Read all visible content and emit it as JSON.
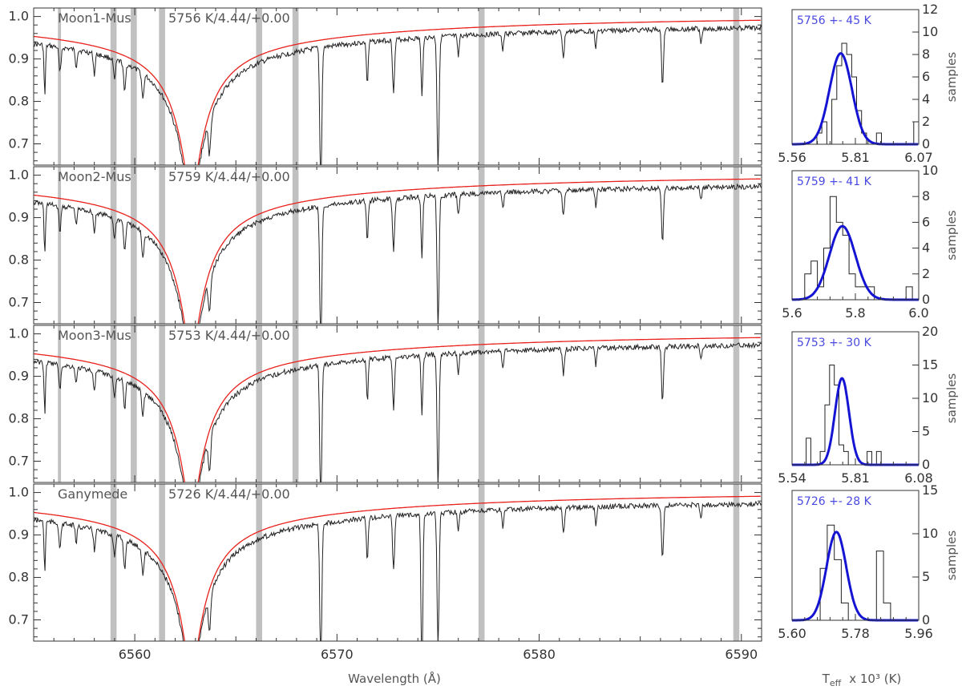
{
  "colors": {
    "spectrum": "#222222",
    "model": "#e8211c",
    "mask": "#c0c0c0",
    "gauss": "#1414d2",
    "histogram": "#222222",
    "label": "#555555",
    "hist_label": "#4a4ae0"
  },
  "chart_data": [
    {
      "type": "line",
      "panel": "Moon1-Mus",
      "label_name": "Moon1-Mus",
      "label_params": "5756 K/4.44/+0.00",
      "xlabel": "",
      "xlim": [
        6555.0,
        6591.0
      ],
      "ylim": [
        0.65,
        1.02
      ],
      "yticks": [
        "1.0",
        "0.9",
        "0.8",
        "0.7"
      ],
      "mask_windows": [
        [
          6556.2,
          6556.35
        ],
        [
          6558.8,
          6559.1
        ],
        [
          6559.8,
          6560.1
        ],
        [
          6561.2,
          6561.5
        ],
        [
          6566.0,
          6566.3
        ],
        [
          6567.8,
          6568.1
        ],
        [
          6577.0,
          6577.3
        ],
        [
          6589.6,
          6589.9
        ]
      ],
      "lines": [
        {
          "w": 6555.55,
          "d": 0.12,
          "s": 0.05
        },
        {
          "w": 6556.3,
          "d": 0.06,
          "s": 0.07
        },
        {
          "w": 6557.1,
          "d": 0.04,
          "s": 0.06
        },
        {
          "w": 6558.0,
          "d": 0.05,
          "s": 0.06
        },
        {
          "w": 6559.0,
          "d": 0.05,
          "s": 0.07
        },
        {
          "w": 6559.5,
          "d": 0.07,
          "s": 0.07
        },
        {
          "w": 6560.4,
          "d": 0.06,
          "s": 0.07
        },
        {
          "w": 6563.7,
          "d": 0.08,
          "s": 0.08
        },
        {
          "w": 6569.2,
          "d": 0.33,
          "s": 0.07
        },
        {
          "w": 6571.5,
          "d": 0.1,
          "s": 0.06
        },
        {
          "w": 6572.8,
          "d": 0.12,
          "s": 0.07
        },
        {
          "w": 6574.2,
          "d": 0.14,
          "s": 0.06
        },
        {
          "w": 6575.0,
          "d": 0.31,
          "s": 0.07
        },
        {
          "w": 6576.0,
          "d": 0.05,
          "s": 0.06
        },
        {
          "w": 6578.2,
          "d": 0.04,
          "s": 0.06
        },
        {
          "w": 6581.2,
          "d": 0.06,
          "s": 0.07
        },
        {
          "w": 6582.8,
          "d": 0.04,
          "s": 0.06
        },
        {
          "w": 6586.1,
          "d": 0.13,
          "s": 0.07
        },
        {
          "w": 6588.0,
          "d": 0.03,
          "s": 0.06
        }
      ],
      "gauss_amp": 0.0,
      "series": [
        {
          "name": "",
          "kind": "observed",
          "values": []
        },
        {
          "name": "",
          "kind": "model",
          "values": []
        }
      ]
    },
    {
      "type": "line",
      "panel": "Moon2-Mus",
      "label_name": "Moon2-Mus",
      "label_params": "5759 K/4.44/+0.00",
      "xlabel": "",
      "xlim": [
        6555.0,
        6591.0
      ],
      "ylim": [
        0.65,
        1.02
      ],
      "yticks": [
        "1.0",
        "0.9",
        "0.8",
        "0.7"
      ],
      "mask_windows": [
        [
          6556.2,
          6556.35
        ],
        [
          6558.8,
          6559.1
        ],
        [
          6559.8,
          6560.1
        ],
        [
          6561.2,
          6561.5
        ],
        [
          6566.0,
          6566.3
        ],
        [
          6567.8,
          6568.1
        ],
        [
          6577.0,
          6577.3
        ],
        [
          6589.6,
          6589.9
        ]
      ],
      "lines": [
        {
          "w": 6555.55,
          "d": 0.12,
          "s": 0.05
        },
        {
          "w": 6556.3,
          "d": 0.06,
          "s": 0.07
        },
        {
          "w": 6557.1,
          "d": 0.04,
          "s": 0.06
        },
        {
          "w": 6558.0,
          "d": 0.05,
          "s": 0.06
        },
        {
          "w": 6559.0,
          "d": 0.05,
          "s": 0.07
        },
        {
          "w": 6559.5,
          "d": 0.07,
          "s": 0.07
        },
        {
          "w": 6560.4,
          "d": 0.06,
          "s": 0.07
        },
        {
          "w": 6563.7,
          "d": 0.08,
          "s": 0.08
        },
        {
          "w": 6569.2,
          "d": 0.33,
          "s": 0.07
        },
        {
          "w": 6571.5,
          "d": 0.1,
          "s": 0.06
        },
        {
          "w": 6572.8,
          "d": 0.12,
          "s": 0.07
        },
        {
          "w": 6574.2,
          "d": 0.14,
          "s": 0.06
        },
        {
          "w": 6575.0,
          "d": 0.31,
          "s": 0.07
        },
        {
          "w": 6576.0,
          "d": 0.05,
          "s": 0.06
        },
        {
          "w": 6578.2,
          "d": 0.04,
          "s": 0.06
        },
        {
          "w": 6581.2,
          "d": 0.06,
          "s": 0.07
        },
        {
          "w": 6582.8,
          "d": 0.04,
          "s": 0.06
        },
        {
          "w": 6586.1,
          "d": 0.13,
          "s": 0.07
        },
        {
          "w": 6588.0,
          "d": 0.03,
          "s": 0.06
        }
      ],
      "series": [
        {
          "name": "",
          "kind": "observed",
          "values": []
        },
        {
          "name": "",
          "kind": "model",
          "values": []
        }
      ]
    },
    {
      "type": "line",
      "panel": "Moon3-Mus",
      "label_name": "Moon3-Mus",
      "label_params": "5753 K/4.44/+0.00",
      "xlabel": "",
      "xlim": [
        6555.0,
        6591.0
      ],
      "ylim": [
        0.65,
        1.02
      ],
      "yticks": [
        "1.0",
        "0.9",
        "0.8",
        "0.7"
      ],
      "mask_windows": [
        [
          6556.2,
          6556.35
        ],
        [
          6558.8,
          6559.1
        ],
        [
          6559.8,
          6560.1
        ],
        [
          6561.2,
          6561.5
        ],
        [
          6566.0,
          6566.3
        ],
        [
          6567.8,
          6568.1
        ],
        [
          6577.0,
          6577.3
        ],
        [
          6589.6,
          6589.9
        ]
      ],
      "lines": [
        {
          "w": 6555.55,
          "d": 0.12,
          "s": 0.05
        },
        {
          "w": 6556.3,
          "d": 0.06,
          "s": 0.07
        },
        {
          "w": 6557.1,
          "d": 0.04,
          "s": 0.06
        },
        {
          "w": 6558.0,
          "d": 0.05,
          "s": 0.06
        },
        {
          "w": 6559.0,
          "d": 0.05,
          "s": 0.07
        },
        {
          "w": 6559.5,
          "d": 0.07,
          "s": 0.07
        },
        {
          "w": 6560.4,
          "d": 0.06,
          "s": 0.07
        },
        {
          "w": 6563.7,
          "d": 0.08,
          "s": 0.08
        },
        {
          "w": 6569.2,
          "d": 0.33,
          "s": 0.07
        },
        {
          "w": 6571.5,
          "d": 0.1,
          "s": 0.06
        },
        {
          "w": 6572.8,
          "d": 0.12,
          "s": 0.07
        },
        {
          "w": 6574.2,
          "d": 0.14,
          "s": 0.06
        },
        {
          "w": 6575.0,
          "d": 0.31,
          "s": 0.07
        },
        {
          "w": 6576.0,
          "d": 0.05,
          "s": 0.06
        },
        {
          "w": 6578.2,
          "d": 0.04,
          "s": 0.06
        },
        {
          "w": 6581.2,
          "d": 0.06,
          "s": 0.07
        },
        {
          "w": 6582.8,
          "d": 0.04,
          "s": 0.06
        },
        {
          "w": 6586.1,
          "d": 0.13,
          "s": 0.07
        },
        {
          "w": 6588.0,
          "d": 0.03,
          "s": 0.06
        }
      ],
      "series": [
        {
          "name": "",
          "kind": "observed",
          "values": []
        },
        {
          "name": "",
          "kind": "model",
          "values": []
        }
      ]
    },
    {
      "type": "line",
      "panel": "Ganymede",
      "label_name": "Ganymede",
      "label_params": "5726 K/4.44/+0.00",
      "xlabel": "Wavelength (Å)",
      "xlim": [
        6555.0,
        6591.0
      ],
      "ylim": [
        0.65,
        1.02
      ],
      "yticks": [
        "1.0",
        "0.9",
        "0.8",
        "0.7"
      ],
      "xticks": [
        6560,
        6570,
        6580,
        6590
      ],
      "mask_windows": [
        [
          6558.8,
          6559.1
        ],
        [
          6561.2,
          6561.5
        ],
        [
          6566.0,
          6566.3
        ],
        [
          6577.0,
          6577.3
        ],
        [
          6589.6,
          6589.9
        ]
      ],
      "lines": [
        {
          "w": 6555.55,
          "d": 0.12,
          "s": 0.05
        },
        {
          "w": 6556.3,
          "d": 0.06,
          "s": 0.07
        },
        {
          "w": 6557.1,
          "d": 0.04,
          "s": 0.06
        },
        {
          "w": 6558.0,
          "d": 0.05,
          "s": 0.06
        },
        {
          "w": 6559.0,
          "d": 0.05,
          "s": 0.07
        },
        {
          "w": 6559.5,
          "d": 0.07,
          "s": 0.07
        },
        {
          "w": 6560.4,
          "d": 0.06,
          "s": 0.07
        },
        {
          "w": 6563.7,
          "d": 0.08,
          "s": 0.08
        },
        {
          "w": 6569.2,
          "d": 0.33,
          "s": 0.07
        },
        {
          "w": 6571.5,
          "d": 0.1,
          "s": 0.06
        },
        {
          "w": 6572.8,
          "d": 0.12,
          "s": 0.07
        },
        {
          "w": 6574.2,
          "d": 0.4,
          "s": 0.06
        },
        {
          "w": 6575.0,
          "d": 0.31,
          "s": 0.07
        },
        {
          "w": 6576.0,
          "d": 0.05,
          "s": 0.06
        },
        {
          "w": 6578.2,
          "d": 0.04,
          "s": 0.06
        },
        {
          "w": 6581.2,
          "d": 0.06,
          "s": 0.07
        },
        {
          "w": 6582.8,
          "d": 0.04,
          "s": 0.06
        },
        {
          "w": 6586.1,
          "d": 0.13,
          "s": 0.07
        },
        {
          "w": 6588.0,
          "d": 0.03,
          "s": 0.06
        }
      ],
      "series": [
        {
          "name": "",
          "kind": "observed",
          "values": []
        },
        {
          "name": "",
          "kind": "model",
          "values": []
        }
      ]
    },
    {
      "type": "bar",
      "panel": "hist-1",
      "label": "5756 +- 45 K",
      "ylabel": "samples",
      "xlim": [
        5.56,
        6.07
      ],
      "ylim": [
        0,
        12
      ],
      "xtick_labels": [
        "5.56",
        "5.81",
        "6.07"
      ],
      "yticks": [
        0,
        2,
        4,
        6,
        8,
        10,
        12
      ],
      "bin_edges": [
        5.66,
        5.68,
        5.7,
        5.72,
        5.74,
        5.76,
        5.78,
        5.8,
        5.82,
        5.84,
        5.86,
        5.88,
        5.9,
        5.92,
        5.94,
        5.96,
        5.98
      ],
      "counts": [
        1,
        2,
        0,
        4,
        7,
        9,
        8,
        6,
        3,
        1,
        0,
        0,
        1,
        0,
        0,
        0
      ],
      "extra_bins": [
        [
          6.05,
          6.07,
          2
        ]
      ],
      "gauss": {
        "mu": 5.756,
        "sigma": 0.045,
        "amp": 8.1
      }
    },
    {
      "type": "bar",
      "panel": "hist-2",
      "label": "5759 +- 41 K",
      "ylabel": "samples",
      "xlim": [
        5.6,
        6.0
      ],
      "ylim": [
        0,
        10
      ],
      "xtick_labels": [
        "5.6",
        "5.8",
        "6.0"
      ],
      "yticks": [
        0,
        2,
        4,
        6,
        8,
        10
      ],
      "bin_edges": [
        5.64,
        5.66,
        5.68,
        5.7,
        5.72,
        5.74,
        5.76,
        5.78,
        5.8,
        5.82,
        5.84,
        5.86,
        5.88,
        5.9
      ],
      "counts": [
        2,
        3,
        1,
        4,
        8,
        6,
        5,
        2,
        1,
        1,
        1,
        0,
        0
      ],
      "extra_bins": [
        [
          5.96,
          5.98,
          1
        ]
      ],
      "gauss": {
        "mu": 5.759,
        "sigma": 0.041,
        "amp": 5.7
      }
    },
    {
      "type": "bar",
      "panel": "hist-3",
      "label": "5753 +- 30 K",
      "ylabel": "samples",
      "xlim": [
        5.54,
        6.08
      ],
      "ylim": [
        0,
        20
      ],
      "xtick_labels": [
        "5.54",
        "5.81",
        "6.08"
      ],
      "yticks": [
        0,
        5,
        10,
        15,
        20
      ],
      "bin_edges": [
        5.6,
        5.62,
        5.64,
        5.66,
        5.68,
        5.7,
        5.72,
        5.74,
        5.76,
        5.78,
        5.8
      ],
      "counts": [
        4,
        0,
        0,
        2,
        9,
        15,
        12,
        3,
        2,
        0
      ],
      "extra_bins": [
        [
          5.86,
          5.88,
          2
        ],
        [
          5.88,
          5.9,
          0
        ],
        [
          5.9,
          5.92,
          2
        ]
      ],
      "gauss": {
        "mu": 5.753,
        "sigma": 0.03,
        "amp": 13.0
      }
    },
    {
      "type": "bar",
      "panel": "hist-4",
      "label": "5726 +- 28 K",
      "ylabel": "samples",
      "xlim": [
        5.6,
        5.96
      ],
      "ylim": [
        0,
        15
      ],
      "xtick_labels": [
        "5.60",
        "5.78",
        "5.96"
      ],
      "xlabel": "T_eff x 10^3 (K)",
      "xlabel_main": "T",
      "xlabel_sub": "eff",
      "xlabel_rest": "x 10³   (K)",
      "yticks": [
        0,
        5,
        10,
        15
      ],
      "bin_edges": [
        5.64,
        5.66,
        5.68,
        5.7,
        5.72,
        5.74,
        5.76,
        5.78,
        5.8,
        5.82,
        5.84,
        5.86,
        5.88
      ],
      "counts": [
        0,
        0,
        6,
        11,
        7,
        2,
        0,
        0,
        0,
        0,
        8,
        2
      ],
      "gauss": {
        "mu": 5.726,
        "sigma": 0.028,
        "amp": 10.2
      }
    }
  ]
}
